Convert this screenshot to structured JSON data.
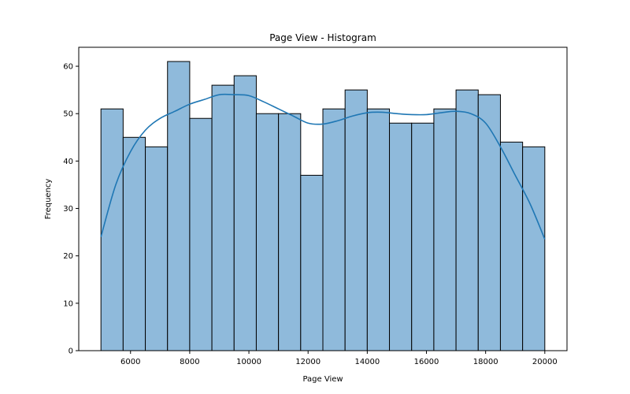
{
  "chart_data": {
    "type": "bar",
    "title": "Page View - Histogram",
    "xlabel": "Page View",
    "ylabel": "Frequency",
    "xlim": [
      4250,
      20750
    ],
    "ylim": [
      0,
      64
    ],
    "grid": false,
    "bin_edges": [
      5000,
      5750,
      6500,
      7250,
      8000,
      8750,
      9500,
      10250,
      11000,
      11750,
      12500,
      13250,
      14000,
      14750,
      15500,
      16250,
      17000,
      17750,
      18500,
      19250,
      20000
    ],
    "values": [
      51,
      45,
      43,
      61,
      49,
      56,
      58,
      50,
      50,
      37,
      51,
      55,
      51,
      48,
      48,
      51,
      55,
      54,
      44,
      43
    ],
    "xticks": [
      6000,
      8000,
      10000,
      12000,
      14000,
      16000,
      18000,
      20000
    ],
    "yticks": [
      0,
      10,
      20,
      30,
      40,
      50,
      60
    ],
    "kde": {
      "x": [
        5000,
        5500,
        6000,
        6500,
        7000,
        7500,
        8000,
        8500,
        9000,
        9500,
        10000,
        10500,
        11000,
        11500,
        12000,
        12500,
        13000,
        13500,
        14000,
        14500,
        15000,
        15500,
        16000,
        16500,
        17000,
        17500,
        18000,
        18500,
        19000,
        19500,
        20000
      ],
      "y": [
        24,
        35,
        42,
        46.5,
        49,
        50.5,
        52,
        53,
        54,
        54,
        53.8,
        52.5,
        51,
        49.5,
        48,
        47.8,
        48.5,
        49.5,
        50.2,
        50.3,
        50,
        49.8,
        49.8,
        50.2,
        50.5,
        50,
        48,
        43,
        37,
        31,
        23.5
      ]
    },
    "colors": {
      "bar_fill": "#8fbadb",
      "bar_edge": "#000000",
      "kde_line": "#1f77b4"
    }
  }
}
